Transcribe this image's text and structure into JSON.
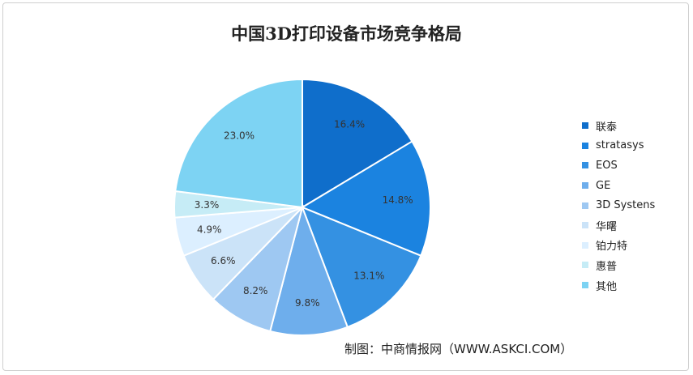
{
  "chart_data": {
    "type": "pie",
    "title": "中国3D打印设备市场竞争格局",
    "categories": [
      "联泰",
      "stratasys",
      "EOS",
      "GE",
      "3D Systens",
      "华曙",
      "铂力特",
      "惠普",
      "其他"
    ],
    "values": [
      16.4,
      14.8,
      13.1,
      9.8,
      8.2,
      6.6,
      4.9,
      3.3,
      23.0
    ],
    "data_labels": [
      "16.4%",
      "14.8%",
      "13.1%",
      "9.8%",
      "8.2%",
      "6.6%",
      "4.9%",
      "3.3%",
      "23.0%"
    ],
    "colors": [
      "#0f6ecb",
      "#1b83e0",
      "#3491e2",
      "#6eaeec",
      "#9ec8f2",
      "#cbe3f8",
      "#dcefff",
      "#c6ecf6",
      "#7dd3f3"
    ],
    "legend_position": "right"
  },
  "source": "制图：中商情报网（WWW.ASKCI.COM）"
}
